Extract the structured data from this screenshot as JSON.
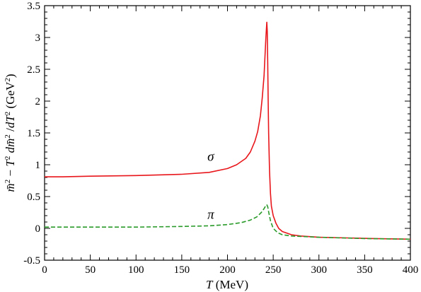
{
  "chart_data": {
    "type": "line",
    "xlabel": "T (MeV)",
    "ylabel": "m̄² − T² dm̄²/dT²  (GeV²)",
    "xlim": [
      0,
      400
    ],
    "ylim": [
      -0.5,
      3.5
    ],
    "x_ticks": [
      0,
      50,
      100,
      150,
      200,
      250,
      300,
      350,
      400
    ],
    "y_ticks": [
      -0.5,
      0,
      0.5,
      1,
      1.5,
      2,
      2.5,
      3,
      3.5
    ],
    "x_tick_labels": [
      "0",
      "50",
      "100",
      "150",
      "200",
      "250",
      "300",
      "350",
      "400"
    ],
    "y_tick_labels": [
      "-0.5",
      "0",
      "0.5",
      "1",
      "1.5",
      "2",
      "2.5",
      "3",
      "3.5"
    ],
    "grid": false,
    "series": [
      {
        "name": "σ",
        "color": "#e8161b",
        "style": "solid",
        "x": [
          0,
          20,
          50,
          100,
          150,
          180,
          200,
          210,
          220,
          225,
          230,
          233,
          236,
          238,
          240,
          241,
          242,
          243,
          243.5,
          244,
          244.5,
          245,
          246,
          247,
          248,
          250,
          253,
          256,
          260,
          270,
          280,
          300,
          330,
          360,
          400
        ],
        "y": [
          0.81,
          0.81,
          0.82,
          0.83,
          0.85,
          0.88,
          0.94,
          1.0,
          1.1,
          1.2,
          1.37,
          1.52,
          1.77,
          2.05,
          2.4,
          2.7,
          3.0,
          3.24,
          3.1,
          2.6,
          2.0,
          1.5,
          0.9,
          0.55,
          0.35,
          0.2,
          0.08,
          0.0,
          -0.05,
          -0.1,
          -0.12,
          -0.14,
          -0.15,
          -0.16,
          -0.17
        ]
      },
      {
        "name": "π",
        "color": "#2a9b2a",
        "style": "dashed",
        "x": [
          0,
          50,
          100,
          150,
          180,
          200,
          215,
          225,
          232,
          237,
          240,
          242,
          243,
          244,
          245,
          247,
          250,
          255,
          260,
          270,
          300,
          350,
          400
        ],
        "y": [
          0.02,
          0.02,
          0.02,
          0.03,
          0.04,
          0.06,
          0.09,
          0.13,
          0.18,
          0.25,
          0.31,
          0.36,
          0.37,
          0.34,
          0.26,
          0.12,
          0.0,
          -0.07,
          -0.1,
          -0.12,
          -0.14,
          -0.16,
          -0.17
        ]
      }
    ],
    "annotations": [
      {
        "text": "σ",
        "x": 178,
        "y": 1.06
      },
      {
        "text": "π",
        "x": 178,
        "y": 0.15
      }
    ]
  }
}
